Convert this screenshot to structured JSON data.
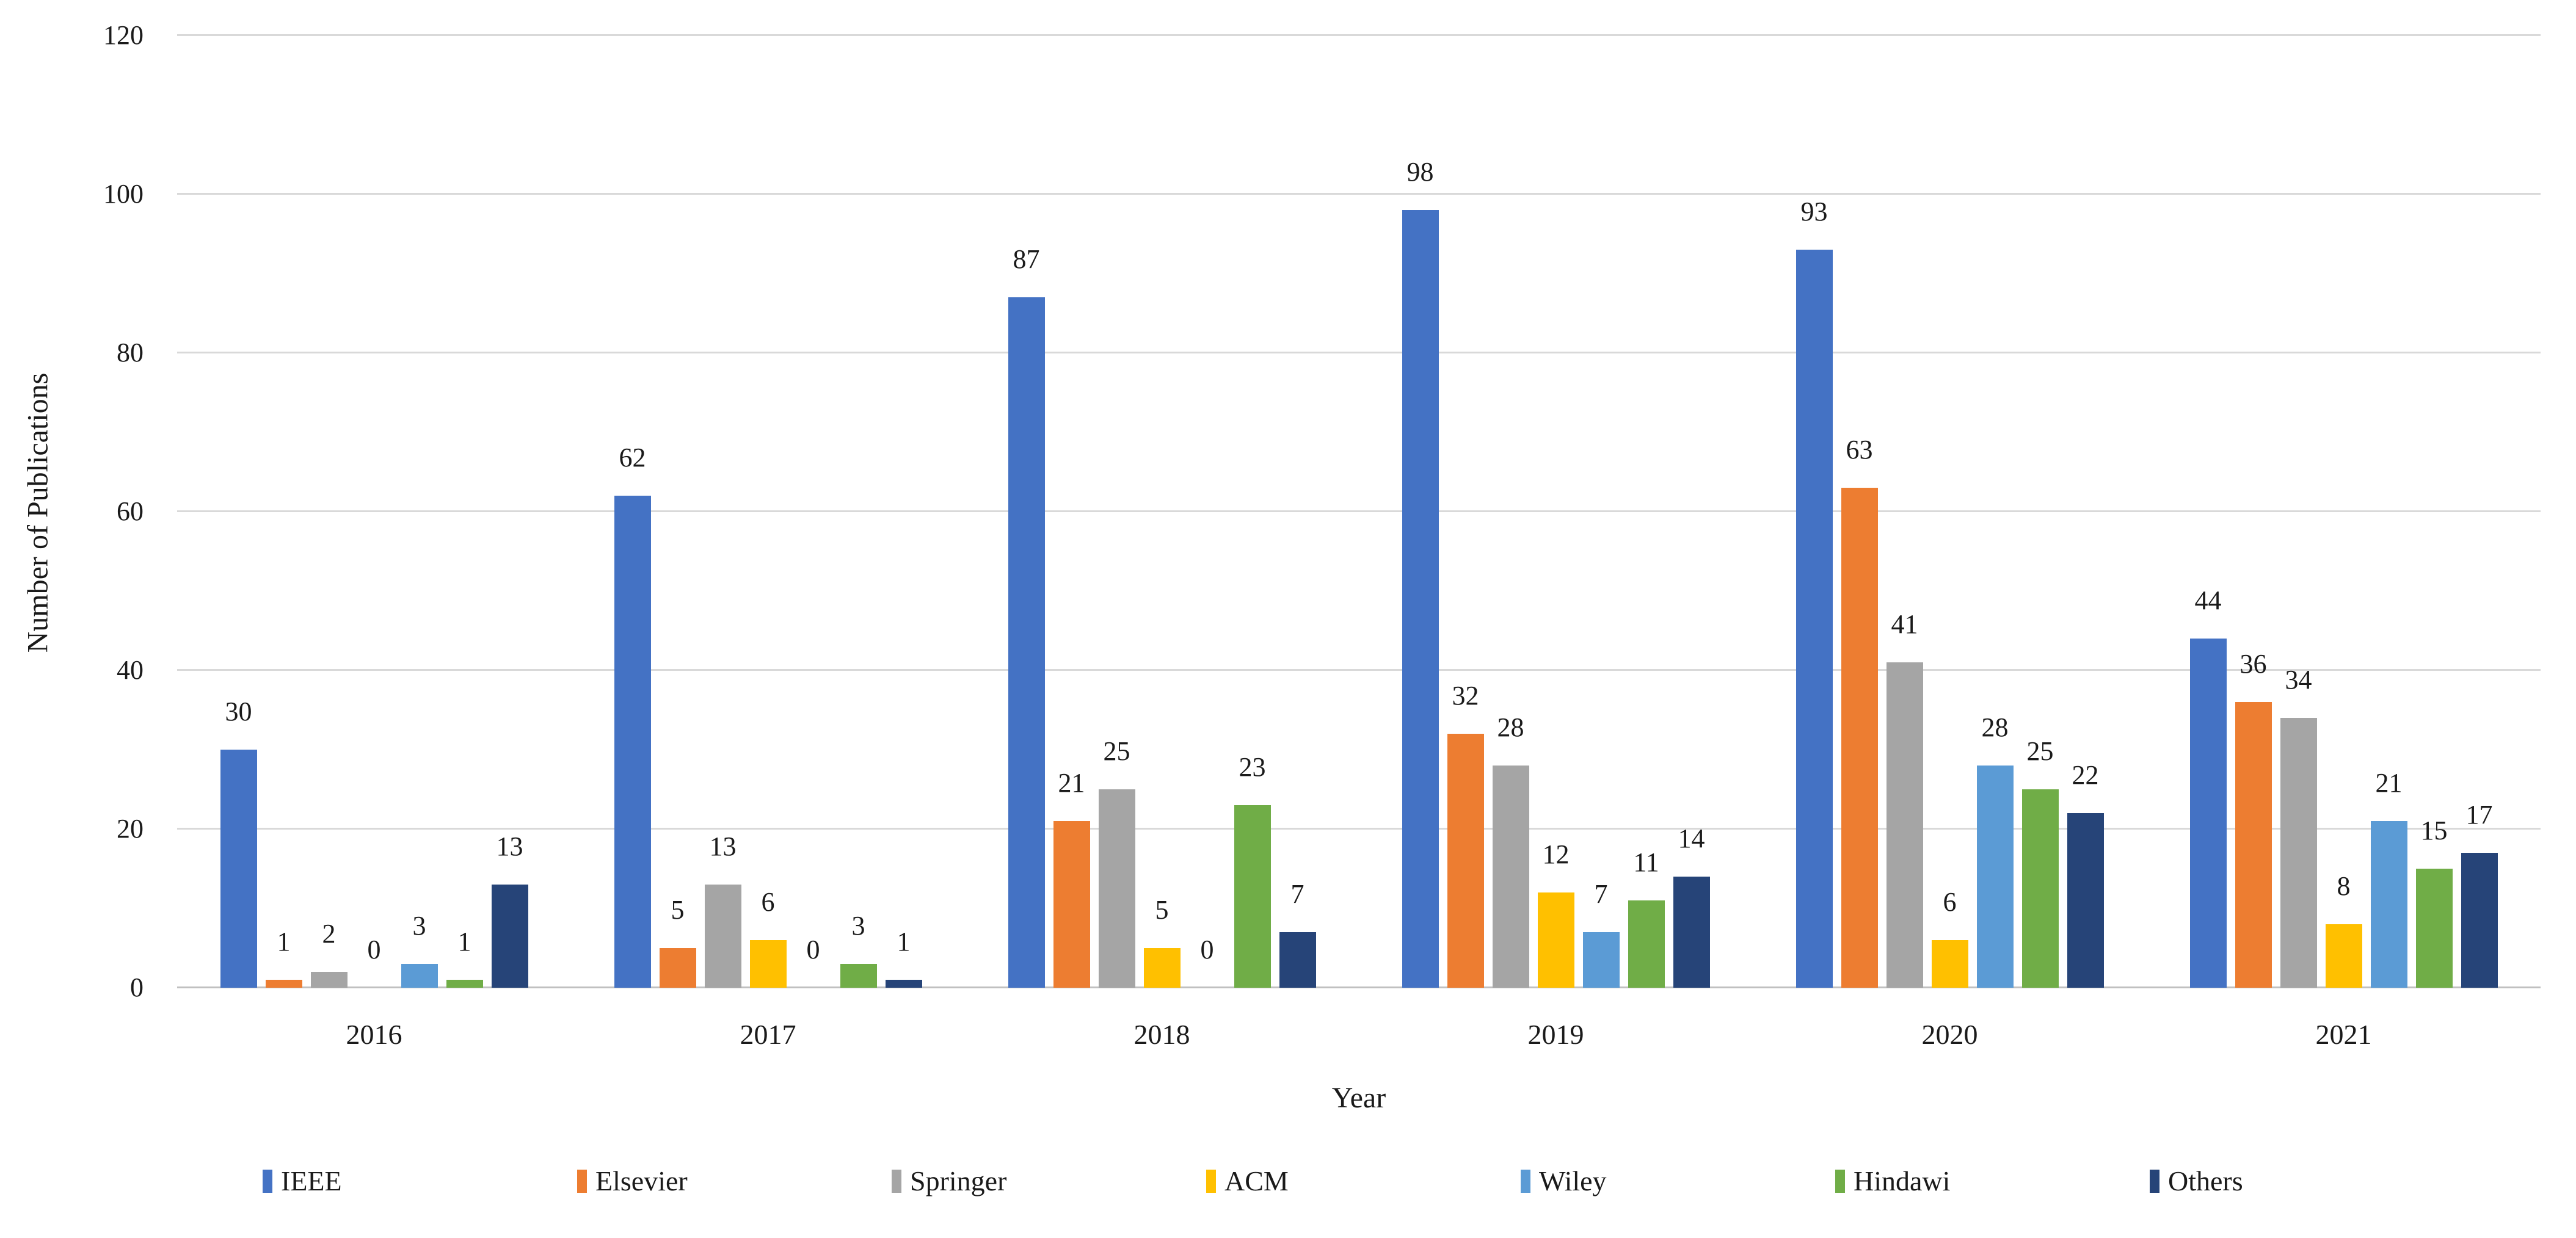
{
  "figure": {
    "ylabel": "Number of Publications",
    "xlabel": "Year"
  },
  "chart_data": {
    "type": "bar",
    "title": "",
    "xlabel": "Year",
    "ylabel": "Number of Publications",
    "ylim": [
      0,
      120
    ],
    "yticks": [
      0,
      20,
      40,
      60,
      80,
      100,
      120
    ],
    "grid": true,
    "data_labels": true,
    "legend_position": "bottom",
    "categories": [
      "2016",
      "2017",
      "2018",
      "2019",
      "2020",
      "2021"
    ],
    "series": [
      {
        "name": "IEEE",
        "color": "#4472C4",
        "values": [
          30,
          62,
          87,
          98,
          93,
          44
        ]
      },
      {
        "name": "Elsevier",
        "color": "#ED7D31",
        "values": [
          1,
          5,
          21,
          32,
          63,
          36
        ]
      },
      {
        "name": "Springer",
        "color": "#A5A5A5",
        "values": [
          2,
          13,
          25,
          28,
          41,
          34
        ]
      },
      {
        "name": "ACM",
        "color": "#FFC000",
        "values": [
          0,
          6,
          5,
          12,
          6,
          8
        ]
      },
      {
        "name": "Wiley",
        "color": "#5B9BD5",
        "values": [
          3,
          0,
          0,
          7,
          28,
          21
        ]
      },
      {
        "name": "Hindawi",
        "color": "#70AD47",
        "values": [
          1,
          3,
          23,
          11,
          25,
          15
        ]
      },
      {
        "name": "Others",
        "color": "#264478",
        "values": [
          13,
          1,
          7,
          14,
          22,
          17
        ]
      }
    ]
  }
}
